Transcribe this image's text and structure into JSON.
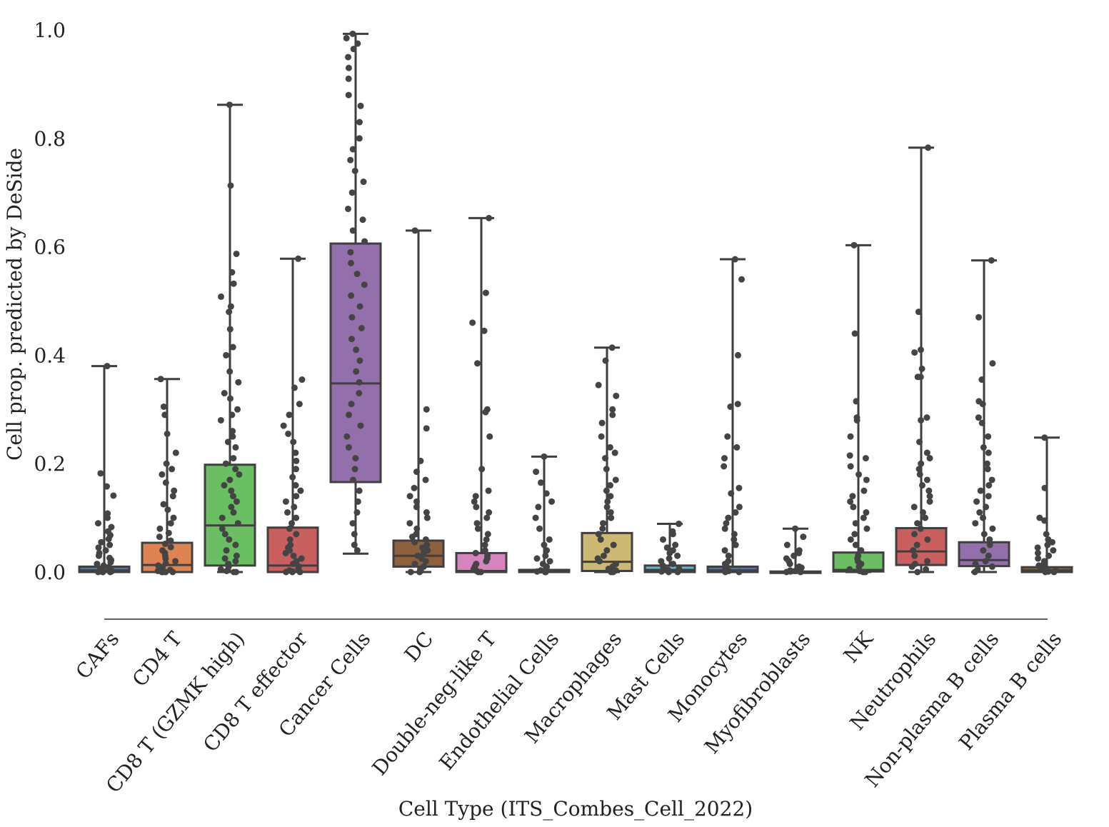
{
  "chart_data": {
    "type": "box",
    "xlabel": "Cell Type (ITS_Combes_Cell_2022)",
    "ylabel": "Cell prop. predicted by DeSide",
    "ylim": [
      -0.085,
      1.02
    ],
    "yticks": [
      0.0,
      0.2,
      0.4,
      0.6,
      0.8,
      1.0
    ],
    "ytick_labels": [
      "0.0",
      "0.2",
      "0.4",
      "0.6",
      "0.8",
      "1.0"
    ],
    "grid": false,
    "legend": "none",
    "point_color": "#444444",
    "categories": [
      "CAFs",
      "CD4 T",
      "CD8 T (GZMK high)",
      "CD8 T effector",
      "Cancer Cells",
      "DC",
      "Double-neg-like T",
      "Endothelial Cells",
      "Macrophages",
      "Mast Cells",
      "Monocytes",
      "Myofibroblasts",
      "NK",
      "Neutrophils",
      "Non-plasma B cells",
      "Plasma B cells"
    ],
    "colors": [
      "#4c72b0",
      "#dd8452",
      "#6abf63",
      "#c95f5f",
      "#9370ab",
      "#8c613c",
      "#d684bd",
      "#8c8c8c",
      "#ccb974",
      "#64b5cd",
      "#4c72b0",
      "#dd8452",
      "#6abf63",
      "#c95f5f",
      "#9370ab",
      "#8c613c"
    ],
    "boxes": [
      {
        "category": "CAFs",
        "min": 0.0,
        "q1": 0.0,
        "median": 0.003,
        "q3": 0.01,
        "max": 0.38
      },
      {
        "category": "CD4 T",
        "min": 0.0,
        "q1": 0.0,
        "median": 0.013,
        "q3": 0.054,
        "max": 0.356
      },
      {
        "category": "CD8 T (GZMK high)",
        "min": 0.0,
        "q1": 0.012,
        "median": 0.086,
        "q3": 0.198,
        "max": 0.862
      },
      {
        "category": "CD8 T effector",
        "min": 0.0,
        "q1": 0.0,
        "median": 0.012,
        "q3": 0.082,
        "max": 0.578
      },
      {
        "category": "Cancer Cells",
        "min": 0.034,
        "q1": 0.166,
        "median": 0.348,
        "q3": 0.606,
        "max": 0.993
      },
      {
        "category": "DC",
        "min": 0.0,
        "q1": 0.01,
        "median": 0.03,
        "q3": 0.058,
        "max": 0.63
      },
      {
        "category": "Double-neg-like T",
        "min": 0.0,
        "q1": 0.0,
        "median": 0.002,
        "q3": 0.035,
        "max": 0.653
      },
      {
        "category": "Endothelial Cells",
        "min": 0.0,
        "q1": 0.0,
        "median": 0.001,
        "q3": 0.004,
        "max": 0.213
      },
      {
        "category": "Macrophages",
        "min": 0.0,
        "q1": 0.002,
        "median": 0.019,
        "q3": 0.072,
        "max": 0.414
      },
      {
        "category": "Mast Cells",
        "min": 0.0,
        "q1": 0.0,
        "median": 0.004,
        "q3": 0.012,
        "max": 0.089
      },
      {
        "category": "Monocytes",
        "min": 0.0,
        "q1": 0.0,
        "median": 0.003,
        "q3": 0.01,
        "max": 0.577
      },
      {
        "category": "Myofibroblasts",
        "min": 0.0,
        "q1": 0.0,
        "median": 0.0,
        "q3": 0.001,
        "max": 0.08
      },
      {
        "category": "NK",
        "min": 0.0,
        "q1": 0.001,
        "median": 0.004,
        "q3": 0.036,
        "max": 0.603
      },
      {
        "category": "Neutrophils",
        "min": 0.0,
        "q1": 0.013,
        "median": 0.038,
        "q3": 0.081,
        "max": 0.783
      },
      {
        "category": "Non-plasma B cells",
        "min": 0.0,
        "q1": 0.011,
        "median": 0.022,
        "q3": 0.055,
        "max": 0.575
      },
      {
        "category": "Plasma B cells",
        "min": 0.0,
        "q1": 0.0,
        "median": 0.003,
        "q3": 0.009,
        "max": 0.248
      }
    ],
    "strip_points": [
      [
        0.38,
        0.182,
        0.158,
        0.141,
        0.108,
        0.1,
        0.09,
        0.083,
        0.075,
        0.068,
        0.061,
        0.055,
        0.05,
        0.045,
        0.04,
        0.035,
        0.03,
        0.026,
        0.022,
        0.018,
        0.015,
        0.012,
        0.009,
        0.007,
        0.005,
        0.003,
        0.002,
        0.001,
        0.0,
        0.0,
        0.0,
        0.0
      ],
      [
        0.356,
        0.305,
        0.29,
        0.255,
        0.22,
        0.2,
        0.19,
        0.18,
        0.165,
        0.15,
        0.14,
        0.125,
        0.115,
        0.1,
        0.09,
        0.08,
        0.072,
        0.065,
        0.058,
        0.052,
        0.046,
        0.04,
        0.035,
        0.03,
        0.025,
        0.02,
        0.016,
        0.012,
        0.009,
        0.006,
        0.004,
        0.002,
        0.001,
        0.0,
        0.0,
        0.0,
        0.0
      ],
      [
        0.862,
        0.713,
        0.587,
        0.553,
        0.532,
        0.508,
        0.49,
        0.48,
        0.448,
        0.415,
        0.4,
        0.37,
        0.35,
        0.33,
        0.32,
        0.3,
        0.29,
        0.28,
        0.26,
        0.25,
        0.24,
        0.23,
        0.21,
        0.2,
        0.19,
        0.18,
        0.17,
        0.16,
        0.15,
        0.14,
        0.13,
        0.12,
        0.11,
        0.1,
        0.09,
        0.08,
        0.07,
        0.06,
        0.05,
        0.04,
        0.03,
        0.025,
        0.02,
        0.015,
        0.01,
        0.005,
        0.002,
        0.0,
        0.0
      ],
      [
        0.578,
        0.355,
        0.34,
        0.31,
        0.29,
        0.27,
        0.255,
        0.24,
        0.22,
        0.205,
        0.19,
        0.175,
        0.16,
        0.15,
        0.14,
        0.13,
        0.12,
        0.11,
        0.1,
        0.09,
        0.08,
        0.07,
        0.06,
        0.05,
        0.045,
        0.04,
        0.035,
        0.03,
        0.025,
        0.02,
        0.015,
        0.01,
        0.006,
        0.003,
        0.001,
        0.0,
        0.0,
        0.0
      ],
      [
        0.993,
        0.985,
        0.975,
        0.965,
        0.95,
        0.93,
        0.91,
        0.88,
        0.86,
        0.83,
        0.8,
        0.78,
        0.76,
        0.74,
        0.72,
        0.7,
        0.67,
        0.65,
        0.63,
        0.61,
        0.59,
        0.57,
        0.55,
        0.53,
        0.51,
        0.49,
        0.47,
        0.45,
        0.43,
        0.41,
        0.39,
        0.37,
        0.35,
        0.33,
        0.31,
        0.29,
        0.27,
        0.25,
        0.23,
        0.21,
        0.19,
        0.17,
        0.15,
        0.13,
        0.11,
        0.09,
        0.07,
        0.05,
        0.04
      ],
      [
        0.63,
        0.3,
        0.265,
        0.205,
        0.185,
        0.17,
        0.155,
        0.14,
        0.13,
        0.12,
        0.11,
        0.1,
        0.09,
        0.08,
        0.07,
        0.065,
        0.06,
        0.055,
        0.05,
        0.045,
        0.04,
        0.035,
        0.03,
        0.025,
        0.02,
        0.015,
        0.01,
        0.005,
        0.002,
        0.0,
        0.0
      ],
      [
        0.653,
        0.515,
        0.46,
        0.445,
        0.385,
        0.3,
        0.295,
        0.25,
        0.19,
        0.15,
        0.14,
        0.13,
        0.12,
        0.11,
        0.1,
        0.09,
        0.08,
        0.07,
        0.06,
        0.05,
        0.04,
        0.035,
        0.03,
        0.025,
        0.02,
        0.015,
        0.01,
        0.005,
        0.002,
        0.0,
        0.0
      ],
      [
        0.213,
        0.185,
        0.165,
        0.145,
        0.13,
        0.12,
        0.1,
        0.08,
        0.06,
        0.05,
        0.04,
        0.03,
        0.025,
        0.02,
        0.015,
        0.01,
        0.006,
        0.003,
        0.001,
        0.0,
        0.0
      ],
      [
        0.414,
        0.39,
        0.345,
        0.325,
        0.3,
        0.29,
        0.275,
        0.25,
        0.23,
        0.22,
        0.21,
        0.19,
        0.17,
        0.16,
        0.15,
        0.14,
        0.13,
        0.12,
        0.11,
        0.1,
        0.09,
        0.08,
        0.07,
        0.06,
        0.05,
        0.04,
        0.03,
        0.025,
        0.02,
        0.015,
        0.01,
        0.006,
        0.003,
        0.001,
        0.0,
        0.0
      ],
      [
        0.089,
        0.075,
        0.07,
        0.06,
        0.05,
        0.045,
        0.04,
        0.035,
        0.03,
        0.025,
        0.02,
        0.015,
        0.012,
        0.009,
        0.006,
        0.004,
        0.002,
        0.001,
        0.0,
        0.0
      ],
      [
        0.577,
        0.54,
        0.4,
        0.31,
        0.305,
        0.25,
        0.23,
        0.21,
        0.195,
        0.155,
        0.145,
        0.12,
        0.11,
        0.1,
        0.09,
        0.08,
        0.07,
        0.06,
        0.05,
        0.04,
        0.03,
        0.02,
        0.015,
        0.01,
        0.005,
        0.002,
        0.0,
        0.0
      ],
      [
        0.08,
        0.065,
        0.05,
        0.04,
        0.035,
        0.03,
        0.025,
        0.02,
        0.015,
        0.01,
        0.008,
        0.005,
        0.003,
        0.002,
        0.001,
        0.0,
        0.0
      ],
      [
        0.603,
        0.44,
        0.315,
        0.285,
        0.28,
        0.25,
        0.215,
        0.21,
        0.195,
        0.18,
        0.17,
        0.15,
        0.14,
        0.13,
        0.12,
        0.11,
        0.1,
        0.09,
        0.08,
        0.07,
        0.06,
        0.05,
        0.04,
        0.03,
        0.025,
        0.02,
        0.015,
        0.01,
        0.005,
        0.002,
        0.0,
        0.0
      ],
      [
        0.783,
        0.48,
        0.41,
        0.405,
        0.375,
        0.36,
        0.36,
        0.285,
        0.28,
        0.24,
        0.22,
        0.21,
        0.2,
        0.19,
        0.18,
        0.17,
        0.16,
        0.15,
        0.14,
        0.13,
        0.12,
        0.11,
        0.1,
        0.09,
        0.08,
        0.07,
        0.06,
        0.05,
        0.04,
        0.03,
        0.02,
        0.015,
        0.01,
        0.005,
        0.0
      ],
      [
        0.575,
        0.47,
        0.385,
        0.355,
        0.315,
        0.31,
        0.285,
        0.275,
        0.25,
        0.23,
        0.22,
        0.2,
        0.19,
        0.17,
        0.16,
        0.15,
        0.14,
        0.13,
        0.12,
        0.11,
        0.1,
        0.09,
        0.08,
        0.07,
        0.06,
        0.05,
        0.04,
        0.03,
        0.02,
        0.015,
        0.01,
        0.005,
        0.0
      ],
      [
        0.248,
        0.155,
        0.1,
        0.095,
        0.07,
        0.06,
        0.055,
        0.05,
        0.045,
        0.04,
        0.035,
        0.03,
        0.025,
        0.02,
        0.015,
        0.012,
        0.009,
        0.006,
        0.003,
        0.001,
        0.0,
        0.0
      ]
    ]
  }
}
